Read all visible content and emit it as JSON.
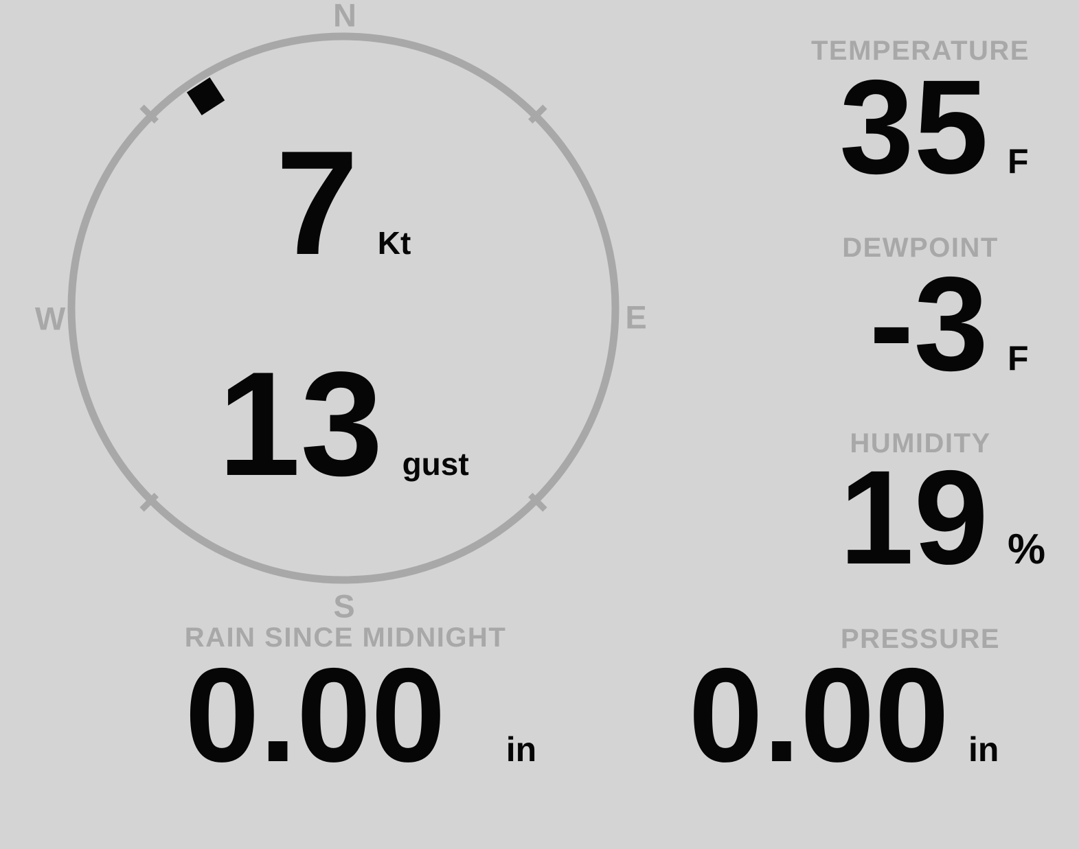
{
  "theme": {
    "background": "#d4d4d4",
    "muted_gray": "#a8a8a8",
    "value_black": "#060606"
  },
  "compass": {
    "cardinals": {
      "n": "N",
      "e": "E",
      "s": "S",
      "w": "W"
    },
    "wind_direction_deg": 327,
    "speed": {
      "value": "7",
      "unit": "Kt"
    },
    "gust": {
      "value": "13",
      "unit": "gust"
    }
  },
  "gauges": {
    "temperature": {
      "label": "TEMPERATURE",
      "value": "35",
      "unit": "F"
    },
    "dewpoint": {
      "label": "DEWPOINT",
      "value": "-3",
      "unit": "F"
    },
    "humidity": {
      "label": "HUMIDITY",
      "value": "19",
      "unit": "%"
    },
    "pressure": {
      "label": "PRESSURE",
      "value": "0.00",
      "unit": "in"
    },
    "rain": {
      "label": "RAIN SINCE MIDNIGHT",
      "value": "0.00",
      "unit": "in"
    }
  }
}
